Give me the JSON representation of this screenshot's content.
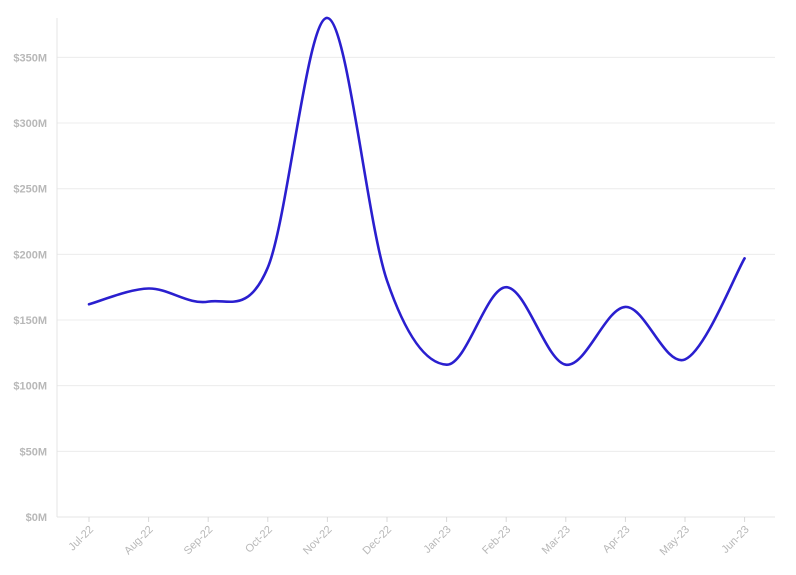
{
  "chart_data": {
    "type": "line",
    "title": "",
    "xlabel": "",
    "ylabel": "",
    "categories": [
      "Jul-22",
      "Aug-22",
      "Sep-22",
      "Oct-22",
      "Nov-22",
      "Dec-22",
      "Jan-23",
      "Feb-23",
      "Mar-23",
      "Apr-23",
      "May-23",
      "Jun-23"
    ],
    "y_ticks": [
      "$0M",
      "$50M",
      "$100M",
      "$150M",
      "$200M",
      "$250M",
      "$300M",
      "$350M"
    ],
    "y_tick_values": [
      0,
      50,
      100,
      150,
      200,
      250,
      300,
      350
    ],
    "ylim": [
      0,
      380
    ],
    "grid": true,
    "legend": "none",
    "series": [
      {
        "name": "",
        "color": "#2a1fcf",
        "values": [
          162,
          174,
          164,
          190,
          380,
          180,
          116,
          175,
          116,
          160,
          120,
          197
        ]
      }
    ]
  }
}
